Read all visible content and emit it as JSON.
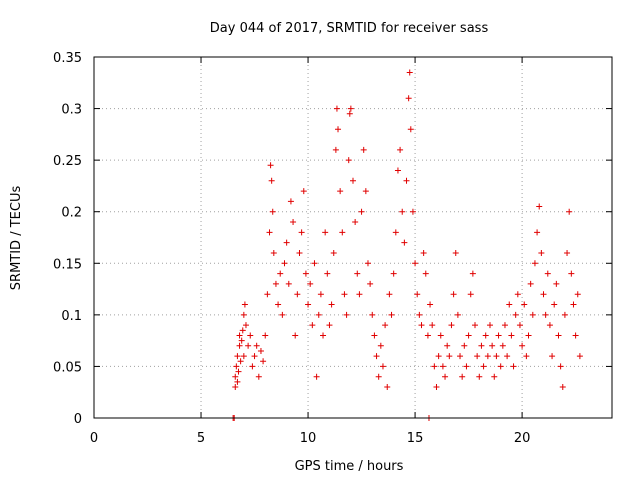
{
  "chart_data": {
    "type": "scatter",
    "title": "Day 044 of 2017, SRMTID for receiver sass",
    "xlabel": "GPS time / hours",
    "ylabel": "SRMTID / TECUs",
    "xlim": [
      0,
      24.2
    ],
    "ylim": [
      0,
      0.35
    ],
    "x_ticks": [
      0,
      5,
      10,
      15,
      20
    ],
    "x_tick_labels": [
      "0",
      "5",
      "10",
      "15",
      "20"
    ],
    "y_ticks": [
      0,
      0.05,
      0.1,
      0.15,
      0.2,
      0.25,
      0.3,
      0.35
    ],
    "y_tick_labels": [
      "0",
      "0.05",
      "0.1",
      "0.15",
      "0.2",
      "0.25",
      "0.3",
      "0.35"
    ],
    "grid": true,
    "marker": "+",
    "color": "#e00000",
    "series": [
      {
        "name": "SRMTID",
        "points": [
          [
            6.5,
            0.0
          ],
          [
            6.55,
            0.0
          ],
          [
            15.65,
            0.0
          ],
          [
            6.6,
            0.03
          ],
          [
            6.6,
            0.04
          ],
          [
            6.65,
            0.05
          ],
          [
            6.7,
            0.035
          ],
          [
            6.7,
            0.06
          ],
          [
            6.75,
            0.045
          ],
          [
            6.8,
            0.07
          ],
          [
            6.8,
            0.08
          ],
          [
            6.85,
            0.055
          ],
          [
            6.9,
            0.075
          ],
          [
            6.95,
            0.085
          ],
          [
            7.0,
            0.06
          ],
          [
            7.0,
            0.1
          ],
          [
            7.05,
            0.11
          ],
          [
            7.1,
            0.09
          ],
          [
            7.2,
            0.07
          ],
          [
            7.3,
            0.08
          ],
          [
            7.4,
            0.05
          ],
          [
            7.5,
            0.06
          ],
          [
            7.6,
            0.07
          ],
          [
            7.7,
            0.04
          ],
          [
            7.8,
            0.065
          ],
          [
            7.9,
            0.055
          ],
          [
            8.0,
            0.08
          ],
          [
            8.1,
            0.12
          ],
          [
            8.2,
            0.18
          ],
          [
            8.25,
            0.245
          ],
          [
            8.3,
            0.23
          ],
          [
            8.35,
            0.2
          ],
          [
            8.4,
            0.16
          ],
          [
            8.5,
            0.13
          ],
          [
            8.6,
            0.11
          ],
          [
            8.7,
            0.14
          ],
          [
            8.8,
            0.1
          ],
          [
            8.9,
            0.15
          ],
          [
            9.0,
            0.17
          ],
          [
            9.1,
            0.13
          ],
          [
            9.2,
            0.21
          ],
          [
            9.3,
            0.19
          ],
          [
            9.4,
            0.08
          ],
          [
            9.5,
            0.12
          ],
          [
            9.6,
            0.16
          ],
          [
            9.7,
            0.18
          ],
          [
            9.8,
            0.22
          ],
          [
            9.9,
            0.14
          ],
          [
            10.0,
            0.11
          ],
          [
            10.1,
            0.13
          ],
          [
            10.2,
            0.09
          ],
          [
            10.3,
            0.15
          ],
          [
            10.4,
            0.04
          ],
          [
            10.5,
            0.1
          ],
          [
            10.6,
            0.12
          ],
          [
            10.7,
            0.08
          ],
          [
            10.8,
            0.18
          ],
          [
            10.9,
            0.14
          ],
          [
            11.0,
            0.09
          ],
          [
            11.1,
            0.11
          ],
          [
            11.2,
            0.16
          ],
          [
            11.3,
            0.26
          ],
          [
            11.35,
            0.3
          ],
          [
            11.4,
            0.28
          ],
          [
            11.5,
            0.22
          ],
          [
            11.6,
            0.18
          ],
          [
            11.7,
            0.12
          ],
          [
            11.8,
            0.1
          ],
          [
            11.9,
            0.25
          ],
          [
            11.95,
            0.295
          ],
          [
            12.0,
            0.3
          ],
          [
            12.1,
            0.23
          ],
          [
            12.2,
            0.19
          ],
          [
            12.3,
            0.14
          ],
          [
            12.4,
            0.12
          ],
          [
            12.5,
            0.2
          ],
          [
            12.6,
            0.26
          ],
          [
            12.7,
            0.22
          ],
          [
            12.8,
            0.15
          ],
          [
            12.9,
            0.13
          ],
          [
            13.0,
            0.1
          ],
          [
            13.1,
            0.08
          ],
          [
            13.2,
            0.06
          ],
          [
            13.3,
            0.04
          ],
          [
            13.4,
            0.07
          ],
          [
            13.5,
            0.05
          ],
          [
            13.6,
            0.09
          ],
          [
            13.7,
            0.03
          ],
          [
            13.8,
            0.12
          ],
          [
            13.9,
            0.1
          ],
          [
            14.0,
            0.14
          ],
          [
            14.1,
            0.18
          ],
          [
            14.2,
            0.24
          ],
          [
            14.3,
            0.26
          ],
          [
            14.4,
            0.2
          ],
          [
            14.5,
            0.17
          ],
          [
            14.6,
            0.23
          ],
          [
            14.7,
            0.31
          ],
          [
            14.75,
            0.335
          ],
          [
            14.8,
            0.28
          ],
          [
            14.9,
            0.2
          ],
          [
            15.0,
            0.15
          ],
          [
            15.1,
            0.12
          ],
          [
            15.2,
            0.1
          ],
          [
            15.3,
            0.09
          ],
          [
            15.4,
            0.16
          ],
          [
            15.5,
            0.14
          ],
          [
            15.6,
            0.08
          ],
          [
            15.7,
            0.11
          ],
          [
            15.8,
            0.09
          ],
          [
            15.9,
            0.05
          ],
          [
            16.0,
            0.03
          ],
          [
            16.1,
            0.06
          ],
          [
            16.2,
            0.08
          ],
          [
            16.3,
            0.05
          ],
          [
            16.4,
            0.04
          ],
          [
            16.5,
            0.07
          ],
          [
            16.6,
            0.06
          ],
          [
            16.7,
            0.09
          ],
          [
            16.8,
            0.12
          ],
          [
            16.9,
            0.16
          ],
          [
            17.0,
            0.1
          ],
          [
            17.1,
            0.06
          ],
          [
            17.2,
            0.04
          ],
          [
            17.3,
            0.07
          ],
          [
            17.4,
            0.05
          ],
          [
            17.5,
            0.08
          ],
          [
            17.6,
            0.12
          ],
          [
            17.7,
            0.14
          ],
          [
            17.8,
            0.09
          ],
          [
            17.9,
            0.06
          ],
          [
            18.0,
            0.04
          ],
          [
            18.1,
            0.07
          ],
          [
            18.2,
            0.05
          ],
          [
            18.3,
            0.08
          ],
          [
            18.4,
            0.06
          ],
          [
            18.5,
            0.09
          ],
          [
            18.6,
            0.07
          ],
          [
            18.7,
            0.04
          ],
          [
            18.8,
            0.06
          ],
          [
            18.9,
            0.08
          ],
          [
            19.0,
            0.05
          ],
          [
            19.1,
            0.07
          ],
          [
            19.2,
            0.09
          ],
          [
            19.3,
            0.06
          ],
          [
            19.4,
            0.11
          ],
          [
            19.5,
            0.08
          ],
          [
            19.6,
            0.05
          ],
          [
            19.7,
            0.1
          ],
          [
            19.8,
            0.12
          ],
          [
            19.9,
            0.09
          ],
          [
            20.0,
            0.07
          ],
          [
            20.1,
            0.11
          ],
          [
            20.2,
            0.06
          ],
          [
            20.3,
            0.08
          ],
          [
            20.4,
            0.13
          ],
          [
            20.5,
            0.1
          ],
          [
            20.6,
            0.15
          ],
          [
            20.7,
            0.18
          ],
          [
            20.8,
            0.205
          ],
          [
            20.9,
            0.16
          ],
          [
            21.0,
            0.12
          ],
          [
            21.1,
            0.1
          ],
          [
            21.2,
            0.14
          ],
          [
            21.3,
            0.09
          ],
          [
            21.4,
            0.06
          ],
          [
            21.5,
            0.11
          ],
          [
            21.6,
            0.13
          ],
          [
            21.7,
            0.08
          ],
          [
            21.8,
            0.05
          ],
          [
            21.9,
            0.03
          ],
          [
            22.0,
            0.1
          ],
          [
            22.1,
            0.16
          ],
          [
            22.2,
            0.2
          ],
          [
            22.3,
            0.14
          ],
          [
            22.4,
            0.11
          ],
          [
            22.5,
            0.08
          ],
          [
            22.6,
            0.12
          ],
          [
            22.7,
            0.06
          ]
        ]
      }
    ]
  }
}
